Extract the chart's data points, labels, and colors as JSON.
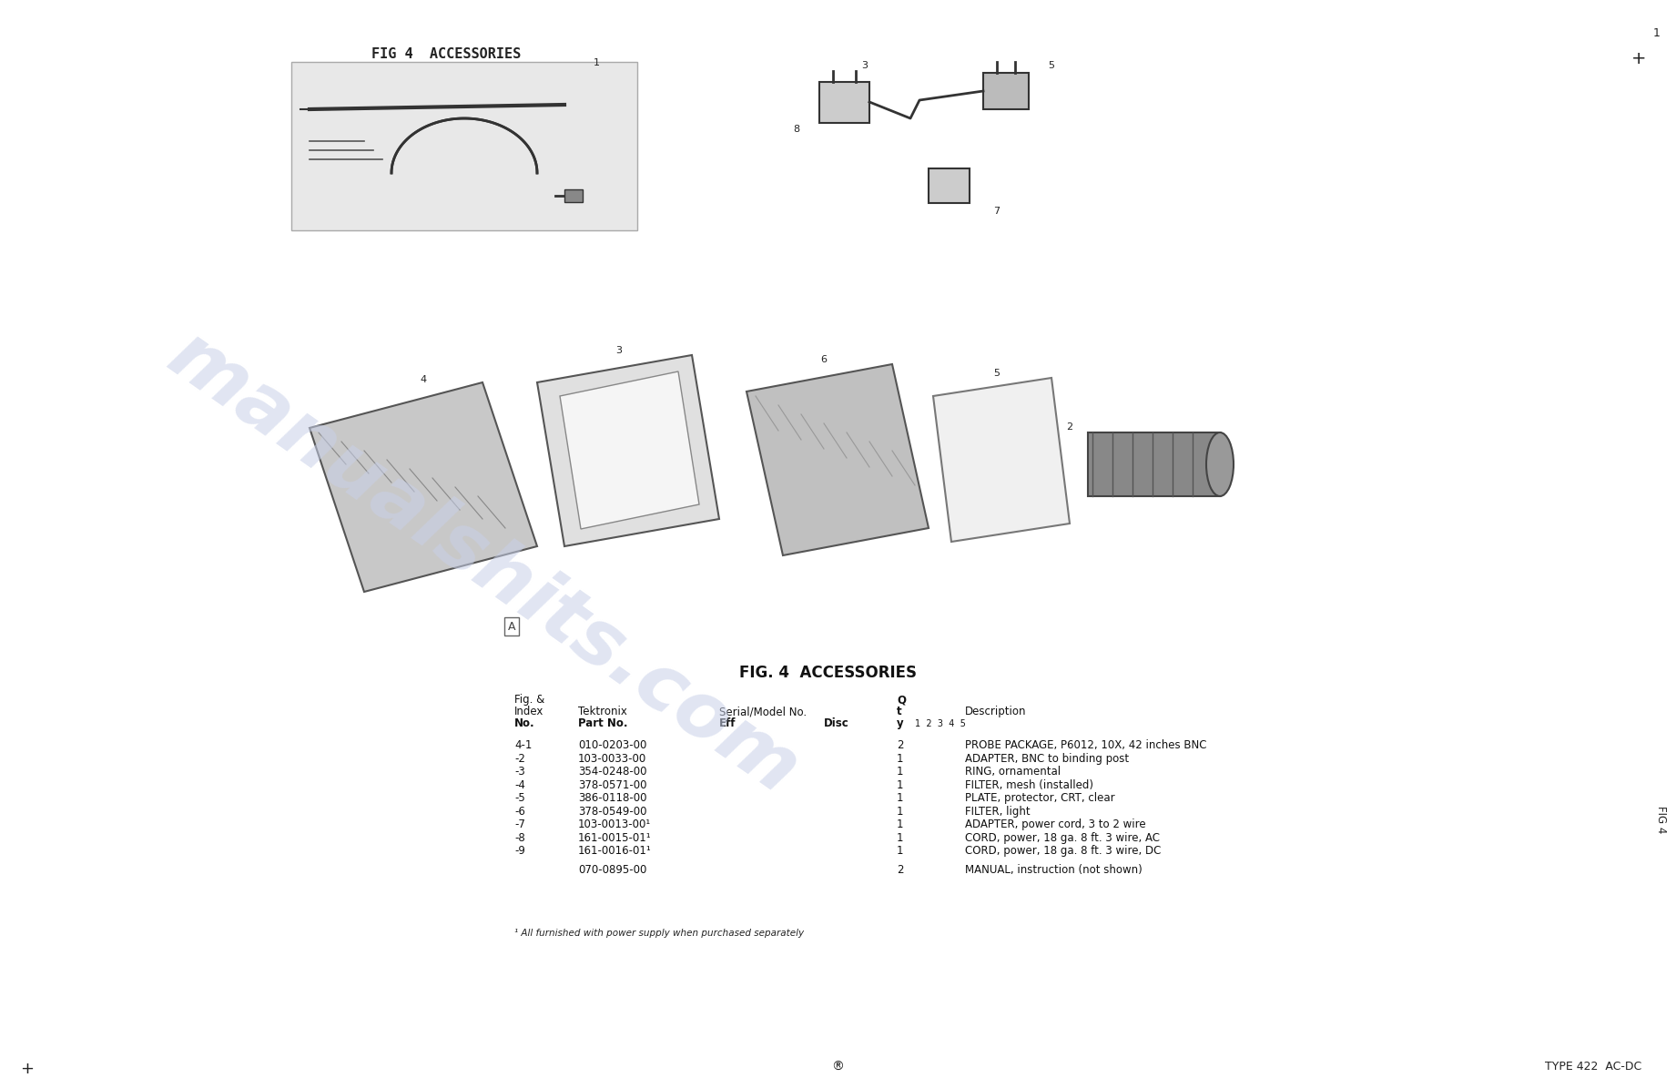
{
  "page_title_top": "FIG 4  ACCESSORIES",
  "table_title": "FIG. 4  ACCESSORIES",
  "background_color": "#ffffff",
  "watermark_text": "manualshits.com",
  "watermark_color": "#c8d0e8",
  "watermark_alpha": 0.55,
  "header_row1": [
    "Fig. &",
    "",
    "",
    "Q",
    ""
  ],
  "header_row2": [
    "Index",
    "Tektronix",
    "Serial/Model No.",
    "t",
    "Description"
  ],
  "header_row3": [
    "No.",
    "Part No.",
    "Eff        Disc",
    "y   1  2  3  4  5",
    ""
  ],
  "table_rows": [
    [
      "4-1",
      "010-0203-00",
      "",
      "2",
      "PROBE PACKAGE, P6012, 10X, 42 inches BNC"
    ],
    [
      "-2",
      "103-0033-00",
      "",
      "1",
      "ADAPTER, BNC to binding post"
    ],
    [
      "-3",
      "354-0248-00",
      "",
      "1",
      "RING, ornamental"
    ],
    [
      "-4",
      "378-0571-00",
      "",
      "1",
      "FILTER, mesh (installed)"
    ],
    [
      "-5",
      "386-0118-00",
      "",
      "1",
      "PLATE, protector, CRT, clear"
    ],
    [
      "-6",
      "378-0549-00",
      "",
      "1",
      "FILTER, light"
    ],
    [
      "-7",
      "103-0013-00¹",
      "",
      "1",
      "ADAPTER, power cord, 3 to 2 wire"
    ],
    [
      "-8",
      "161-0015-01¹",
      "",
      "1",
      "CORD, power, 18 ga. 8 ft. 3 wire, AC"
    ],
    [
      "-9",
      "161-0016-01¹",
      "",
      "1",
      "CORD, power, 18 ga. 8 ft. 3 wire, DC"
    ],
    [
      "",
      "070-0895-00",
      "",
      "2",
      "MANUAL, instruction (not shown)"
    ]
  ],
  "footnote": "¹ All furnished with power supply when purchased separately",
  "bottom_left_plus": "+",
  "bottom_center": "®",
  "bottom_right": "TYPE 422  AC-DC",
  "top_right_plus": "+",
  "top_right_num": "1",
  "fig4_label": "FIG 4",
  "fig4_label_color": "#222222",
  "box_label_A": "A"
}
